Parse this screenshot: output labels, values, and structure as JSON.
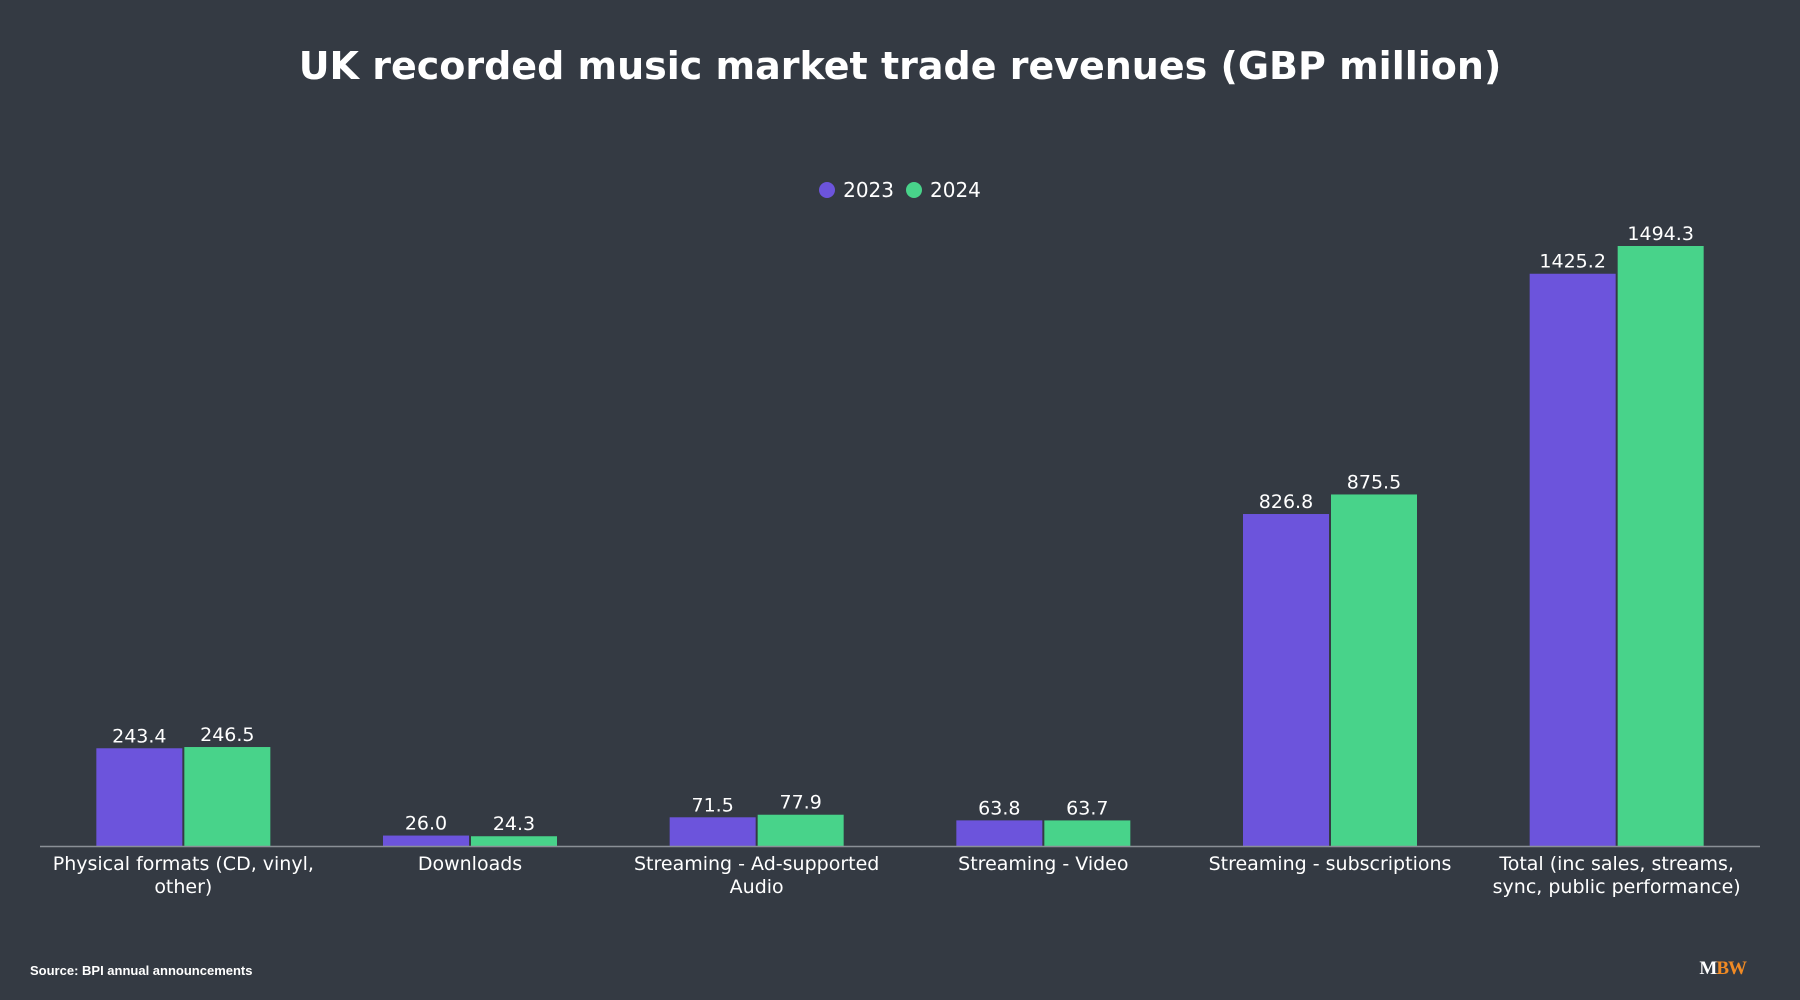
{
  "title": "UK recorded music market trade revenues (GBP million)",
  "source": "Source: BPI annual announcements",
  "logo": {
    "part1": "M",
    "part2": "BW",
    "color1": "#ffffff",
    "color2": "#f08a24"
  },
  "colors": {
    "background": "#343a43",
    "series_2023": "#6c54dc",
    "series_2024": "#48d38a",
    "axis": "#8a8f96"
  },
  "chart_data": {
    "type": "bar",
    "title": "UK recorded music market trade revenues (GBP million)",
    "categories": [
      [
        "Physical formats (CD, vinyl,",
        "other)"
      ],
      [
        "Downloads"
      ],
      [
        "Streaming - Ad-supported",
        "Audio"
      ],
      [
        "Streaming - Video"
      ],
      [
        "Streaming - subscriptions"
      ],
      [
        "Total (inc sales, streams,",
        "sync, public performance)"
      ]
    ],
    "series": [
      {
        "name": "2023",
        "color": "#6c54dc",
        "values": [
          243.4,
          26.0,
          71.5,
          63.8,
          826.8,
          1425.2
        ],
        "labels": [
          "243.4",
          "26.0",
          "71.5",
          "63.8",
          "826.8",
          "1425.2"
        ]
      },
      {
        "name": "2024",
        "color": "#48d38a",
        "values": [
          246.5,
          24.3,
          77.9,
          63.7,
          875.5,
          1494.3
        ],
        "labels": [
          "246.5",
          "24.3",
          "77.9",
          "63.7",
          "875.5",
          "1494.3"
        ]
      }
    ],
    "xlabel": "",
    "ylabel": "",
    "ylim": [
      0,
      1494.3
    ],
    "grid": false,
    "legend_position": "top-center"
  }
}
